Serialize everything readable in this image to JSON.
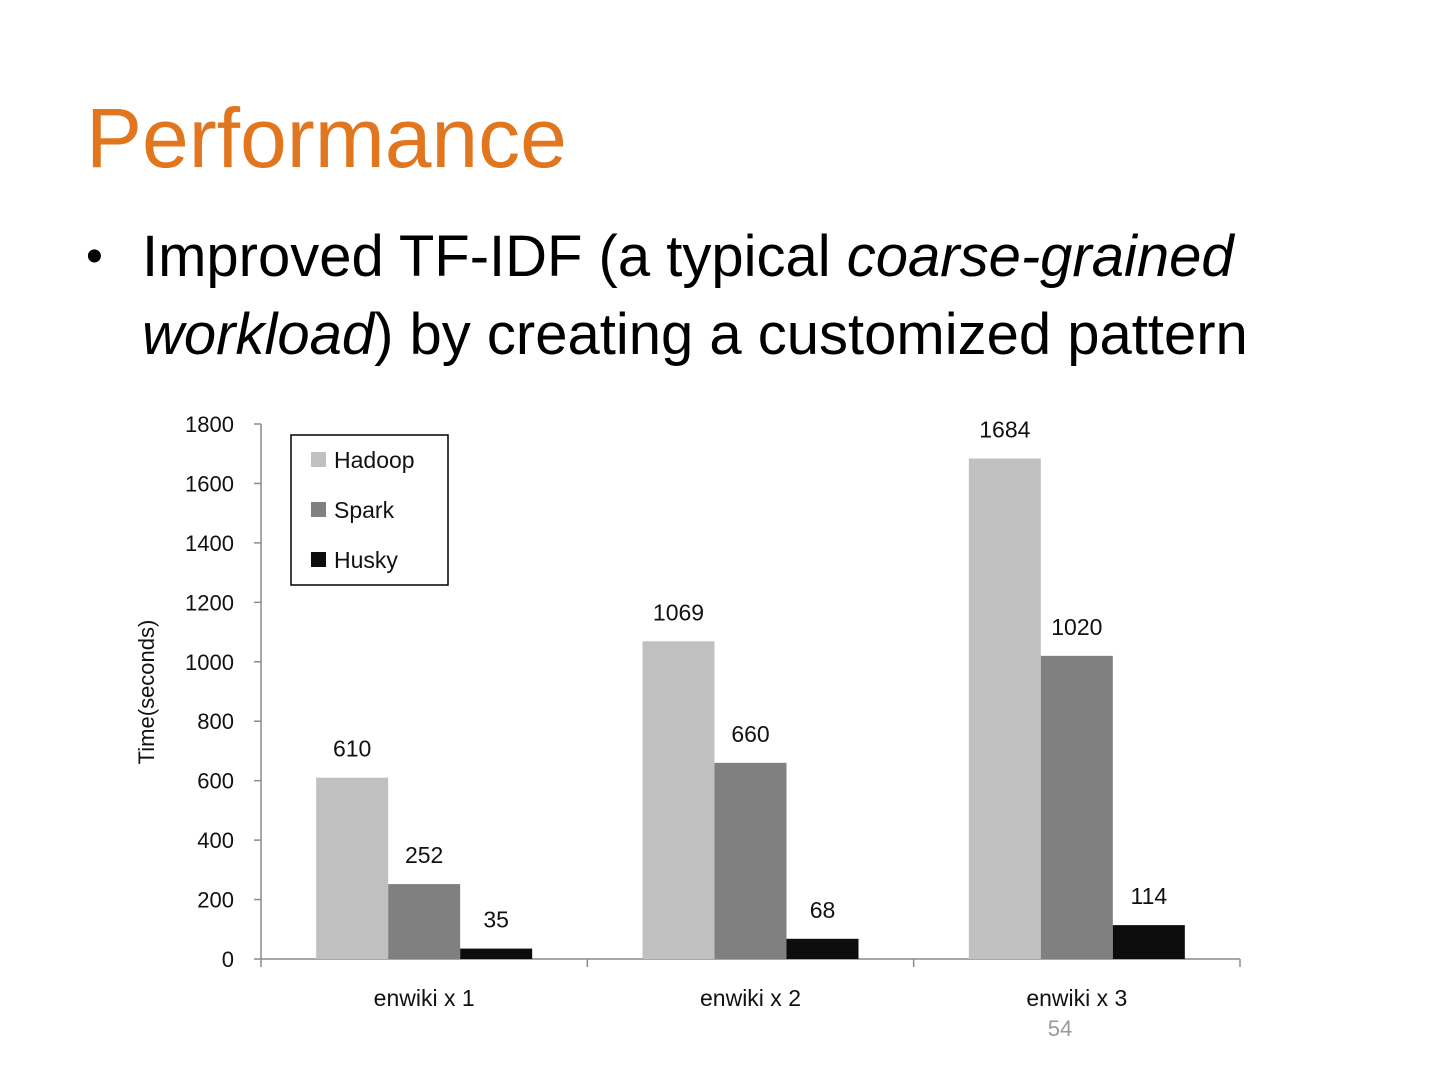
{
  "slide": {
    "title": "Performance",
    "bullet": {
      "line1_prefix": "Improved TF-IDF (a typical ",
      "line1_italic": "coarse-grained",
      "line2_italic": "workload",
      "line2_suffix": ") by creating a customized pattern"
    },
    "page_number": "54"
  },
  "colors": {
    "title": "#E1761F",
    "text": "#000000"
  },
  "chart_data": {
    "type": "bar",
    "title": "",
    "xlabel": "",
    "ylabel": "Time(seconds)",
    "categories": [
      "enwiki x 1",
      "enwiki x 2",
      "enwiki x 3"
    ],
    "series": [
      {
        "name": "Hadoop",
        "values": [
          610,
          1069,
          1684
        ],
        "color": "#C0C0C0"
      },
      {
        "name": "Spark",
        "values": [
          252,
          660,
          1020
        ],
        "color": "#808080"
      },
      {
        "name": "Husky",
        "values": [
          35,
          68,
          114
        ],
        "color": "#0D0D0D"
      }
    ],
    "data_labels": [
      [
        "610",
        "1069",
        "1684"
      ],
      [
        "252",
        "660",
        "1020"
      ],
      [
        "35",
        "68",
        "114"
      ]
    ],
    "ylim": [
      0,
      1800
    ],
    "yticks": [
      0,
      200,
      400,
      600,
      800,
      1000,
      1200,
      1400,
      1600,
      1800
    ],
    "grid": false,
    "legend_position": "top-left"
  }
}
